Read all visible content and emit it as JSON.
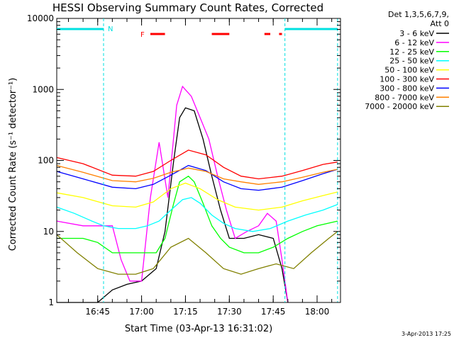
{
  "chart_data": {
    "type": "line",
    "title": "HESSI Observing Summary Count Rates, Corrected",
    "xlabel": "Start Time (03-Apr-13 16:31:02)",
    "ylabel": "Corrected Count Rate (s⁻¹ detector⁻¹)",
    "xlim": [
      "16:31",
      "18:08"
    ],
    "ylim": [
      1,
      10000
    ],
    "yscale": "log",
    "x_ticks": [
      "16:45",
      "17:00",
      "17:15",
      "17:30",
      "17:45",
      "18:00"
    ],
    "y_ticks": [
      "1",
      "10",
      "100",
      "1000",
      "10000"
    ],
    "legend_header": [
      "Det 1,3,5,6,7,9,",
      "Att 0"
    ],
    "legend_position": "right",
    "timestamp": "3-Apr-2013 17:25",
    "flags": {
      "night_label": "N",
      "flare_label": "F",
      "night_bars": [
        [
          "16:31",
          "16:47"
        ],
        [
          "17:49",
          "18:07"
        ]
      ],
      "night_lines": [
        "16:47",
        "17:49",
        "18:07"
      ],
      "flare_bars": [
        [
          "17:03",
          "17:08"
        ],
        [
          "17:24",
          "17:30"
        ],
        [
          "17:42",
          "17:44"
        ],
        [
          "17:47",
          "17:48"
        ]
      ],
      "night_color": "#00e0e0",
      "flare_color": "#ff0000"
    },
    "series": [
      {
        "name": "3 - 6 keV",
        "color": "#000000",
        "x": [
          "16:31",
          "16:40",
          "16:45",
          "16:50",
          "16:55",
          "17:00",
          "17:05",
          "17:08",
          "17:11",
          "17:13",
          "17:15",
          "17:18",
          "17:21",
          "17:24",
          "17:27",
          "17:30",
          "17:35",
          "17:40",
          "17:45",
          "17:48",
          "17:50"
        ],
        "y": [
          1,
          1,
          1,
          1.5,
          1.8,
          2,
          3,
          10,
          100,
          400,
          550,
          500,
          200,
          60,
          20,
          8,
          8,
          9,
          8,
          3,
          1
        ]
      },
      {
        "name": "6 - 12 keV",
        "color": "#ff00ff",
        "x": [
          "16:31",
          "16:40",
          "16:45",
          "16:50",
          "16:53",
          "16:56",
          "17:00",
          "17:03",
          "17:06",
          "17:09",
          "17:12",
          "17:14",
          "17:17",
          "17:20",
          "17:23",
          "17:26",
          "17:29",
          "17:32",
          "17:36",
          "17:40",
          "17:43",
          "17:46",
          "17:48",
          "17:50"
        ],
        "y": [
          14,
          12,
          12,
          12,
          4,
          2,
          2,
          30,
          180,
          30,
          600,
          1100,
          800,
          400,
          200,
          60,
          20,
          8,
          10,
          12,
          18,
          14,
          4,
          1
        ]
      },
      {
        "name": "12 - 25 keV",
        "color": "#00ff00",
        "x": [
          "16:31",
          "16:40",
          "16:45",
          "16:50",
          "16:55",
          "17:00",
          "17:05",
          "17:08",
          "17:11",
          "17:13",
          "17:16",
          "17:18",
          "17:21",
          "17:24",
          "17:27",
          "17:30",
          "17:35",
          "17:40",
          "17:45",
          "17:50",
          "17:55",
          "18:00",
          "18:07"
        ],
        "y": [
          8,
          8,
          7,
          5,
          5,
          5,
          5,
          8,
          25,
          50,
          60,
          50,
          25,
          12,
          8,
          6,
          5,
          5,
          6,
          8,
          10,
          12,
          14
        ]
      },
      {
        "name": "25 - 50 keV",
        "color": "#00ffff",
        "x": [
          "16:31",
          "16:37",
          "16:43",
          "16:47",
          "16:52",
          "16:58",
          "17:02",
          "17:06",
          "17:10",
          "17:14",
          "17:17",
          "17:20",
          "17:24",
          "17:28",
          "17:32",
          "17:38",
          "17:44",
          "17:50",
          "17:56",
          "18:02",
          "18:07"
        ],
        "y": [
          22,
          18,
          14,
          12,
          11,
          11,
          12,
          14,
          20,
          28,
          30,
          25,
          17,
          13,
          11,
          10,
          11,
          14,
          17,
          20,
          24
        ]
      },
      {
        "name": "50 - 100 keV",
        "color": "#ffff00",
        "x": [
          "16:31",
          "16:40",
          "16:50",
          "16:58",
          "17:04",
          "17:10",
          "17:15",
          "17:20",
          "17:26",
          "17:32",
          "17:40",
          "17:48",
          "17:55",
          "18:02",
          "18:07"
        ],
        "y": [
          35,
          30,
          23,
          22,
          26,
          40,
          48,
          40,
          28,
          22,
          20,
          22,
          27,
          32,
          36
        ]
      },
      {
        "name": "100 - 300 keV",
        "color": "#ff0000",
        "x": [
          "16:31",
          "16:40",
          "16:50",
          "16:58",
          "17:04",
          "17:10",
          "17:16",
          "17:22",
          "17:28",
          "17:34",
          "17:40",
          "17:48",
          "17:55",
          "18:02",
          "18:07"
        ],
        "y": [
          110,
          90,
          62,
          60,
          70,
          100,
          140,
          120,
          80,
          60,
          55,
          60,
          72,
          88,
          95
        ]
      },
      {
        "name": "300 - 800 keV",
        "color": "#0000ff",
        "x": [
          "16:31",
          "16:40",
          "16:50",
          "16:58",
          "17:04",
          "17:10",
          "17:16",
          "17:22",
          "17:28",
          "17:34",
          "17:40",
          "17:48",
          "17:55",
          "18:02",
          "18:07"
        ],
        "y": [
          70,
          55,
          42,
          40,
          46,
          62,
          85,
          72,
          50,
          40,
          38,
          42,
          52,
          65,
          75
        ]
      },
      {
        "name": "800 - 7000 keV",
        "color": "#ff8000",
        "x": [
          "16:31",
          "16:40",
          "16:50",
          "16:58",
          "17:04",
          "17:10",
          "17:16",
          "17:22",
          "17:28",
          "17:34",
          "17:40",
          "17:48",
          "17:55",
          "18:02",
          "18:07"
        ],
        "y": [
          85,
          68,
          52,
          50,
          56,
          68,
          78,
          70,
          55,
          50,
          46,
          50,
          58,
          68,
          75
        ]
      },
      {
        "name": "7000 - 20000 keV",
        "color": "#808000",
        "x": [
          "16:31",
          "16:38",
          "16:45",
          "16:52",
          "16:58",
          "17:04",
          "17:10",
          "17:16",
          "17:22",
          "17:28",
          "17:34",
          "17:40",
          "17:46",
          "17:52",
          "17:58",
          "18:04",
          "18:07"
        ],
        "y": [
          9,
          5,
          3,
          2.5,
          2.5,
          3,
          6,
          8,
          5,
          3,
          2.5,
          3,
          3.5,
          3,
          5,
          8,
          10
        ]
      }
    ]
  }
}
